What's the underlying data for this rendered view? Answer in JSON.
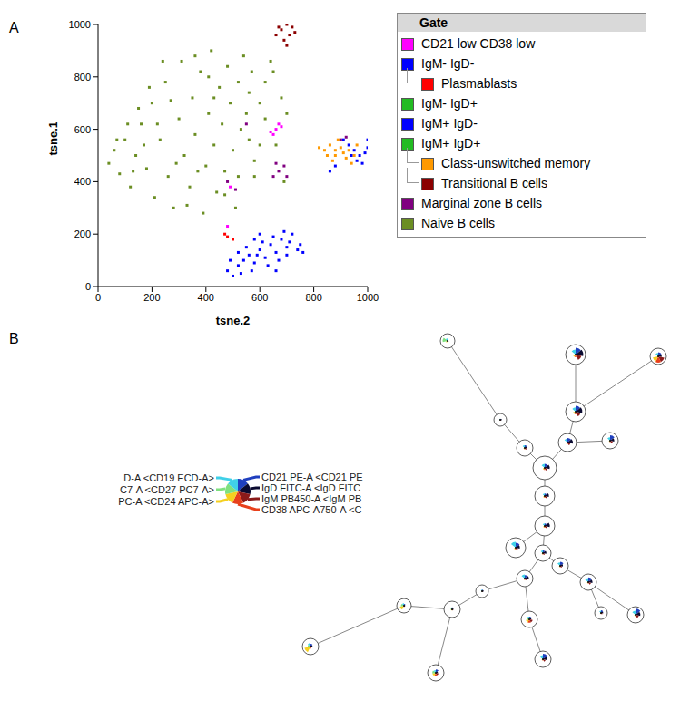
{
  "chart_data": [
    {
      "type": "scatter",
      "panel": "A",
      "xlabel": "tsne.2",
      "ylabel": "tsne.1",
      "xlim": [
        0,
        1000
      ],
      "ylim": [
        0,
        1000
      ],
      "xticks": [
        0,
        200,
        400,
        600,
        800,
        1000
      ],
      "yticks": [
        0,
        200,
        400,
        600,
        800,
        1000
      ],
      "legend_title": "Gate",
      "marker": "square",
      "series": [
        {
          "name": "CD21 low CD38 low",
          "color": "#ff00ff",
          "points": [
            [
              650,
              580
            ],
            [
              660,
              600
            ],
            [
              670,
              620
            ],
            [
              640,
              590
            ],
            [
              680,
              610
            ],
            [
              490,
              380
            ],
            [
              480,
              230
            ]
          ]
        },
        {
          "name": "IgM- IgD-",
          "color": "#0000ff",
          "points": [
            [
              480,
              60
            ],
            [
              500,
              40
            ],
            [
              520,
              80
            ],
            [
              540,
              100
            ],
            [
              560,
              120
            ],
            [
              580,
              90
            ],
            [
              600,
              140
            ],
            [
              620,
              110
            ],
            [
              640,
              160
            ],
            [
              660,
              130
            ],
            [
              680,
              180
            ],
            [
              700,
              150
            ],
            [
              720,
              200
            ],
            [
              740,
              140
            ],
            [
              760,
              130
            ],
            [
              690,
              210
            ],
            [
              650,
              190
            ],
            [
              610,
              170
            ],
            [
              570,
              60
            ],
            [
              530,
              50
            ],
            [
              590,
              120
            ],
            [
              630,
              80
            ],
            [
              670,
              100
            ],
            [
              710,
              170
            ],
            [
              750,
              160
            ],
            [
              550,
              150
            ],
            [
              600,
              200
            ],
            [
              660,
              60
            ],
            [
              700,
              120
            ],
            [
              520,
              130
            ],
            [
              490,
              100
            ],
            [
              580,
              180
            ]
          ]
        },
        {
          "name": "Plasmablasts",
          "parent": "IgM- IgD-",
          "color": "#ff0000",
          "points": [
            [
              470,
              200
            ],
            [
              480,
              190
            ],
            [
              500,
              180
            ]
          ]
        },
        {
          "name": "IgM- IgD+",
          "color": "#22bb22",
          "points": []
        },
        {
          "name": "IgM+ IgD-",
          "color": "#0000ff",
          "points": [
            [
              910,
              560
            ],
            [
              930,
              540
            ],
            [
              950,
              520
            ],
            [
              970,
              500
            ],
            [
              990,
              510
            ],
            [
              1000,
              530
            ],
            [
              960,
              480
            ],
            [
              980,
              470
            ],
            [
              940,
              500
            ],
            [
              860,
              440
            ],
            [
              880,
              460
            ],
            [
              1000,
              560
            ]
          ]
        },
        {
          "name": "IgM+ IgD+",
          "color": "#22bb22",
          "points": []
        },
        {
          "name": "Class-unswitched memory",
          "parent": "IgM+ IgD+",
          "color": "#ff9900",
          "points": [
            [
              840,
              520
            ],
            [
              860,
              540
            ],
            [
              880,
              500
            ],
            [
              900,
              530
            ],
            [
              920,
              490
            ],
            [
              940,
              470
            ],
            [
              870,
              480
            ],
            [
              850,
              500
            ],
            [
              890,
              560
            ],
            [
              910,
              510
            ],
            [
              930,
              520
            ],
            [
              960,
              540
            ],
            [
              820,
              530
            ],
            [
              950,
              500
            ],
            [
              880,
              520
            ]
          ]
        },
        {
          "name": "Transitional B cells",
          "parent": "IgM+ IgD+",
          "color": "#8b0000",
          "points": [
            [
              660,
              960
            ],
            [
              680,
              980
            ],
            [
              700,
              1000
            ],
            [
              720,
              990
            ],
            [
              690,
              940
            ],
            [
              710,
              960
            ],
            [
              670,
              990
            ],
            [
              730,
              970
            ],
            [
              700,
              920
            ]
          ]
        },
        {
          "name": "Marginal zone B cells",
          "color": "#800080",
          "points": [
            [
              650,
              420
            ],
            [
              670,
              440
            ],
            [
              690,
              460
            ],
            [
              660,
              470
            ],
            [
              510,
              370
            ],
            [
              920,
              570
            ],
            [
              900,
              560
            ],
            [
              480,
              400
            ],
            [
              550,
              620
            ],
            [
              700,
              420
            ]
          ]
        },
        {
          "name": "Naive B cells",
          "color": "#6b8e23",
          "points": [
            [
              40,
              470
            ],
            [
              60,
              520
            ],
            [
              80,
              430
            ],
            [
              100,
              560
            ],
            [
              120,
              380
            ],
            [
              140,
              500
            ],
            [
              160,
              620
            ],
            [
              180,
              450
            ],
            [
              200,
              700
            ],
            [
              210,
              340
            ],
            [
              230,
              560
            ],
            [
              250,
              780
            ],
            [
              260,
              420
            ],
            [
              280,
              300
            ],
            [
              300,
              640
            ],
            [
              310,
              860
            ],
            [
              320,
              500
            ],
            [
              340,
              380
            ],
            [
              350,
              720
            ],
            [
              360,
              580
            ],
            [
              380,
              820
            ],
            [
              390,
              280
            ],
            [
              400,
              460
            ],
            [
              410,
              660
            ],
            [
              420,
              900
            ],
            [
              430,
              540
            ],
            [
              440,
              360
            ],
            [
              450,
              760
            ],
            [
              460,
              620
            ],
            [
              470,
              440
            ],
            [
              480,
              840
            ],
            [
              490,
              700
            ],
            [
              500,
              520
            ],
            [
              510,
              300
            ],
            [
              520,
              780
            ],
            [
              530,
              600
            ],
            [
              540,
              880
            ],
            [
              550,
              660
            ],
            [
              560,
              740
            ],
            [
              570,
              820
            ],
            [
              580,
              480
            ],
            [
              600,
              700
            ],
            [
              620,
              780
            ],
            [
              640,
              860
            ],
            [
              660,
              540
            ],
            [
              680,
              720
            ],
            [
              700,
              660
            ],
            [
              690,
              400
            ],
            [
              150,
              680
            ],
            [
              110,
              620
            ],
            [
              70,
              560
            ],
            [
              190,
              760
            ],
            [
              240,
              860
            ],
            [
              270,
              710
            ],
            [
              330,
              310
            ],
            [
              370,
              440
            ],
            [
              430,
              720
            ],
            [
              470,
              350
            ],
            [
              520,
              420
            ],
            [
              560,
              560
            ],
            [
              290,
              470
            ],
            [
              220,
              620
            ],
            [
              130,
              440
            ],
            [
              170,
              540
            ],
            [
              360,
              880
            ],
            [
              410,
              800
            ],
            [
              580,
              420
            ],
            [
              620,
              640
            ],
            [
              650,
              820
            ],
            [
              600,
              540
            ]
          ]
        }
      ]
    },
    {
      "type": "tree",
      "panel": "B",
      "markers": [
        {
          "label": "CD21 PE-A <CD21 PE",
          "color": "#1f3fbf"
        },
        {
          "label": "IgD FITC-A <IgD FITC",
          "color": "#0a0a30"
        },
        {
          "label": "IgM PB450-A <IgM PB",
          "color": "#8b1a1a"
        },
        {
          "label": "CD38 APC-A750-A <C",
          "color": "#e8401c"
        },
        {
          "label": "PC-A <CD24 APC-A>",
          "color": "#f5d020"
        },
        {
          "label": "C7-A <CD27 PC7-A>",
          "color": "#7fe07f"
        },
        {
          "label": "D-A <CD19 ECD-A>",
          "color": "#40d0e8"
        }
      ],
      "nodes": [
        [
          0.2,
          0.1,
          0.2,
          0.1,
          0.3,
          0.8,
          0.4
        ],
        [
          0.8,
          0.9,
          0.7,
          0.3,
          0.3,
          0.1,
          0.6
        ],
        [
          0.6,
          0.5,
          0.9,
          0.9,
          0.8,
          0.1,
          0.5
        ],
        [
          0.7,
          0.8,
          0.6,
          0.3,
          0.3,
          0.1,
          0.5
        ],
        [
          0.8,
          0.6,
          0.4,
          0.2,
          0.2,
          0.1,
          0.5
        ],
        [
          0.2,
          0.3,
          0.2,
          0.1,
          0.1,
          0.1,
          0.2
        ],
        [
          0.4,
          0.4,
          0.3,
          0.2,
          0.2,
          0.1,
          0.4
        ],
        [
          0.6,
          0.7,
          0.4,
          0.2,
          0.2,
          0.1,
          0.5
        ],
        [
          0.4,
          0.5,
          0.3,
          0.2,
          0.2,
          0.1,
          0.4
        ],
        [
          0.3,
          0.5,
          0.3,
          0.2,
          0.2,
          0.1,
          0.3
        ],
        [
          0.3,
          0.6,
          0.3,
          0.2,
          0.2,
          0.1,
          0.3
        ],
        [
          0.6,
          0.5,
          0.3,
          0.2,
          0.2,
          0.1,
          0.7
        ],
        [
          0.4,
          0.5,
          0.3,
          0.2,
          0.2,
          0.1,
          0.4
        ],
        [
          0.5,
          0.6,
          0.3,
          0.2,
          0.2,
          0.1,
          0.6
        ],
        [
          0.6,
          0.4,
          0.3,
          0.2,
          0.2,
          0.1,
          0.5
        ],
        [
          0.7,
          0.6,
          0.4,
          0.2,
          0.2,
          0.1,
          0.6
        ],
        [
          0.9,
          0.7,
          0.5,
          0.2,
          0.2,
          0.1,
          0.6
        ],
        [
          0.5,
          0.4,
          0.3,
          0.2,
          0.2,
          0.1,
          0.4
        ],
        [
          0.3,
          0.3,
          0.2,
          0.1,
          0.1,
          0.1,
          0.3
        ],
        [
          0.3,
          0.2,
          0.2,
          0.1,
          0.2,
          0.2,
          0.3
        ],
        [
          0.3,
          0.2,
          0.2,
          0.2,
          0.7,
          0.5,
          0.4
        ],
        [
          0.4,
          0.3,
          0.2,
          0.3,
          0.9,
          0.4,
          0.5
        ],
        [
          0.4,
          0.3,
          0.5,
          0.5,
          0.5,
          0.3,
          0.4
        ],
        [
          0.5,
          0.3,
          0.4,
          0.4,
          0.5,
          0.5,
          0.4
        ],
        [
          0.8,
          0.6,
          0.4,
          0.2,
          0.2,
          0.1,
          0.6
        ]
      ],
      "edges": [
        [
          0,
          5
        ],
        [
          5,
          6
        ],
        [
          6,
          8
        ],
        [
          1,
          3
        ],
        [
          2,
          3
        ],
        [
          3,
          7
        ],
        [
          4,
          7
        ],
        [
          7,
          8
        ],
        [
          8,
          9
        ],
        [
          9,
          10
        ],
        [
          10,
          11
        ],
        [
          10,
          12
        ],
        [
          12,
          13
        ],
        [
          12,
          14
        ],
        [
          14,
          15
        ],
        [
          15,
          16
        ],
        [
          15,
          17
        ],
        [
          13,
          18
        ],
        [
          18,
          19
        ],
        [
          19,
          20
        ],
        [
          20,
          21
        ],
        [
          19,
          23
        ],
        [
          13,
          22
        ],
        [
          22,
          24
        ]
      ]
    }
  ]
}
